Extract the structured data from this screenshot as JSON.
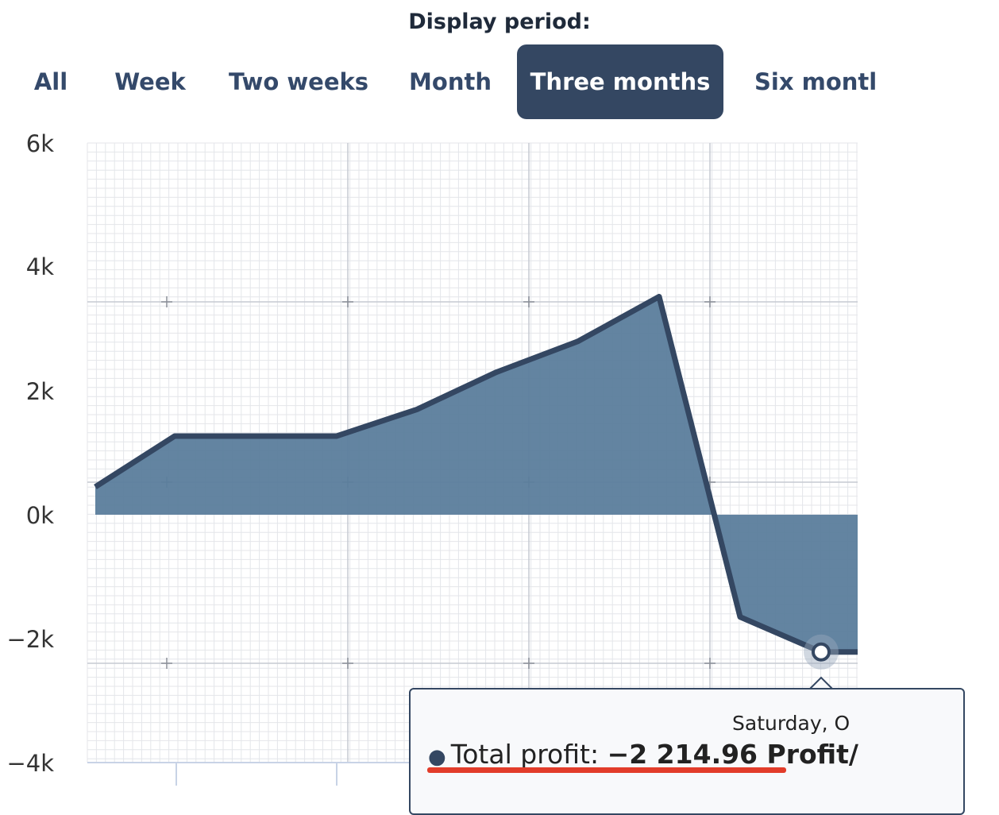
{
  "period_selector": {
    "label": "Display period:",
    "tabs": [
      {
        "label": "All",
        "active": false
      },
      {
        "label": "Week",
        "active": false
      },
      {
        "label": "Two weeks",
        "active": false
      },
      {
        "label": "Month",
        "active": false
      },
      {
        "label": "Three months",
        "active": true
      },
      {
        "label": "Six montl",
        "active": false
      }
    ]
  },
  "chart_data": {
    "type": "area",
    "yticks": [
      "6k",
      "4k",
      "2k",
      "0k",
      "−2k",
      "−4k"
    ],
    "ylim": [
      -4000,
      6000
    ],
    "grid": true,
    "series": [
      {
        "color": "#344762",
        "fill": "#5b7d9c",
        "points": [
          {
            "x": 0,
            "y": 450
          },
          {
            "x": 1,
            "y": 1270
          },
          {
            "x": 2,
            "y": 1270
          },
          {
            "x": 3,
            "y": 1270
          },
          {
            "x": 4,
            "y": 1700
          },
          {
            "x": 5,
            "y": 2300
          },
          {
            "x": 6,
            "y": 2800
          },
          {
            "x": 7,
            "y": 3520
          },
          {
            "x": 8,
            "y": -1650
          },
          {
            "x": 9,
            "y": -2214.96
          },
          {
            "x": 10,
            "y": -2214.96
          }
        ]
      }
    ],
    "highlight_index": 9
  },
  "tooltip": {
    "date": "Saturday, O",
    "series_label": "Total profit:",
    "value": "−2 214.96 Profit/",
    "dot_color": "#344762",
    "underline_color": "#e23c2a"
  }
}
